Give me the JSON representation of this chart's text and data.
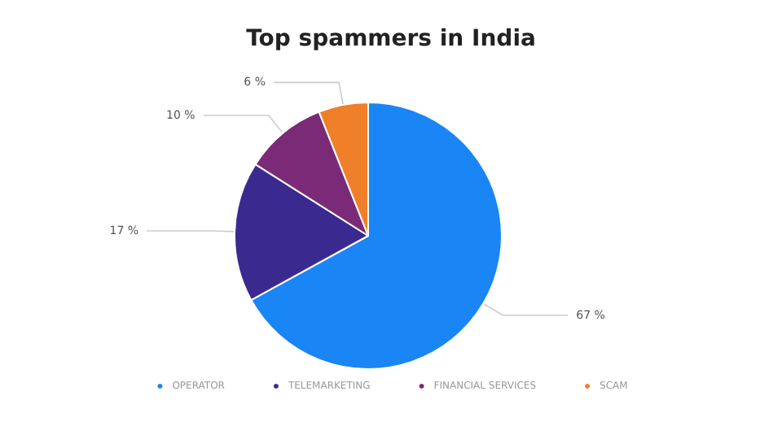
{
  "chart_data": {
    "type": "pie",
    "title": "Top spammers in India",
    "categories": [
      "OPERATOR",
      "TELEMARKETING",
      "FINANCIAL SERVICES",
      "SCAM"
    ],
    "values": [
      67,
      17,
      10,
      6
    ],
    "colors": [
      "#1a85f5",
      "#3a2a90",
      "#7b2a78",
      "#f07f2a"
    ],
    "value_labels": [
      "67 %",
      "17 %",
      "10 %",
      "6 %"
    ],
    "legend": "bottom"
  }
}
